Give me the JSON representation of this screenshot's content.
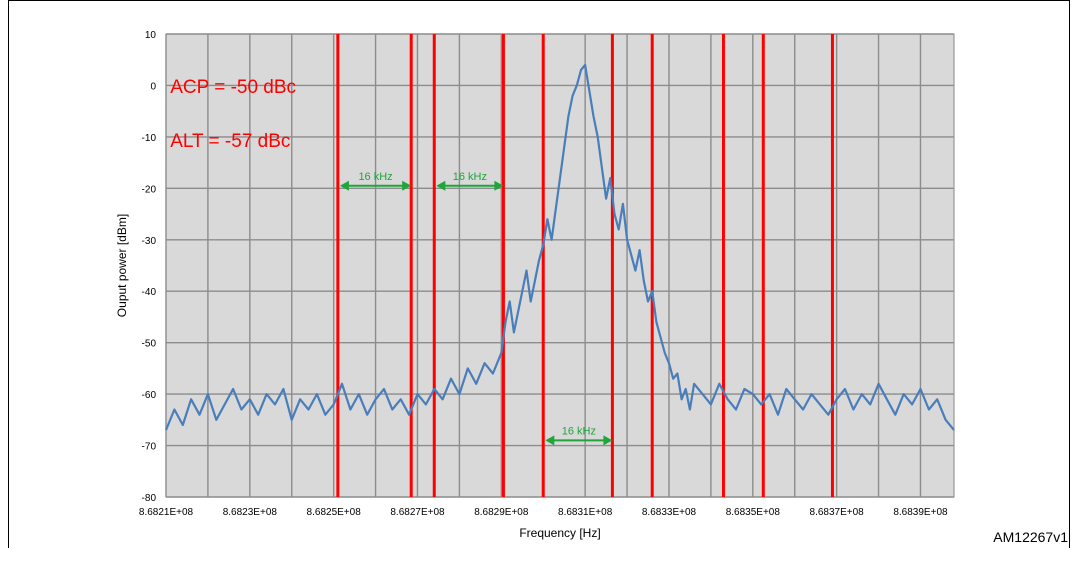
{
  "figure": {
    "id_label": "AM12267v1"
  },
  "chart_data": {
    "type": "line",
    "title": "",
    "xlabel": "Frequency [Hz]",
    "ylabel": "Ouput power [dBm]",
    "xlim": [
      868210000,
      868398000
    ],
    "ylim": [
      -80,
      10
    ],
    "y_ticks": [
      10,
      0,
      -10,
      -20,
      -30,
      -40,
      -50,
      -60,
      -70,
      -80
    ],
    "x_ticks": [
      868210000,
      868230000,
      868250000,
      868270000,
      868290000,
      868310000,
      868330000,
      868350000,
      868370000,
      868390000
    ],
    "x_tick_labels": [
      "8.6821E+08",
      "8.6823E+08",
      "8.6825E+08",
      "8.6827E+08",
      "8.6829E+08",
      "8.6831E+08",
      "8.6833E+08",
      "8.6835E+08",
      "8.6837E+08",
      "8.6839E+08"
    ],
    "grid": true,
    "background_color": "#d9d9d9",
    "line_color": "#4a7ebb",
    "marker_color": "#ff0000",
    "arrow_color": "#1fa53a",
    "series": [
      {
        "x": [
          868210000,
          868212000,
          868214000,
          868216000,
          868218000,
          868220000,
          868222000,
          868224000,
          868226000,
          868228000,
          868230000,
          868232000,
          868234000,
          868236000,
          868238000,
          868240000,
          868242000,
          868244000,
          868246000,
          868248000,
          868250000,
          868252000,
          868254000,
          868256000,
          868258000,
          868260000,
          868262000,
          868264000,
          868266000,
          868268000,
          868270000,
          868272000,
          868274000,
          868276000,
          868278000,
          868280000,
          868282000,
          868284000,
          868286000,
          868288000,
          868290000,
          868291000,
          868292000,
          868293000,
          868294000,
          868295000,
          868296000,
          868297000,
          868298000,
          868299000,
          868300000,
          868301000,
          868302000,
          868303000,
          868304000,
          868305000,
          868306000,
          868307000,
          868308000,
          868309000,
          868310000,
          868311000,
          868312000,
          868313000,
          868314000,
          868315000,
          868316000,
          868317000,
          868318000,
          868319000,
          868320000,
          868321000,
          868322000,
          868323000,
          868324000,
          868325000,
          868326000,
          868327000,
          868328000,
          868329000,
          868330000,
          868331000,
          868332000,
          868333000,
          868334000,
          868335000,
          868336000,
          868338000,
          868340000,
          868342000,
          868344000,
          868346000,
          868348000,
          868350000,
          868352000,
          868354000,
          868356000,
          868358000,
          868360000,
          868362000,
          868364000,
          868366000,
          868368000,
          868370000,
          868372000,
          868374000,
          868376000,
          868378000,
          868380000,
          868382000,
          868384000,
          868386000,
          868388000,
          868390000,
          868392000,
          868394000,
          868396000,
          868398000
        ],
        "y": [
          -67,
          -63,
          -66,
          -61,
          -64,
          -60,
          -65,
          -62,
          -59,
          -63,
          -61,
          -64,
          -60,
          -62,
          -59,
          -65,
          -61,
          -63,
          -60,
          -64,
          -62,
          -58,
          -63,
          -60,
          -64,
          -61,
          -59,
          -63,
          -61,
          -64,
          -60,
          -62,
          -59,
          -61,
          -57,
          -60,
          -55,
          -58,
          -54,
          -56,
          -52,
          -46,
          -42,
          -48,
          -44,
          -40,
          -36,
          -42,
          -38,
          -34,
          -31,
          -26,
          -30,
          -24,
          -18,
          -12,
          -6,
          -2,
          0,
          3,
          4,
          -1,
          -6,
          -10,
          -16,
          -22,
          -18,
          -25,
          -28,
          -23,
          -30,
          -33,
          -36,
          -32,
          -38,
          -42,
          -40,
          -46,
          -49,
          -52,
          -54,
          -57,
          -56,
          -61,
          -59,
          -63,
          -58,
          -60,
          -62,
          -58,
          -61,
          -63,
          -59,
          -60,
          -62,
          -60,
          -64,
          -59,
          -61,
          -63,
          -60,
          -62,
          -64,
          -61,
          -59,
          -63,
          -60,
          -62,
          -58,
          -61,
          -64,
          -60,
          -62,
          -59,
          -63,
          -61,
          -65,
          -67
        ]
      }
    ],
    "vertical_markers": [
      868251000,
      868268500,
      868274000,
      868290500,
      868300000,
      868316500,
      868326000,
      868343000,
      868352500,
      868369000
    ],
    "annotations": [
      {
        "text": "ACP = -50 dBc",
        "x": 868211000,
        "y": -1.5,
        "color": "#ff0000",
        "size": 19
      },
      {
        "text": "ALT = -57 dBc",
        "x": 868211000,
        "y": -12,
        "color": "#ff0000",
        "size": 19
      }
    ],
    "span_arrows": [
      {
        "label": "16 kHz",
        "x1": 868251500,
        "x2": 868268500,
        "y": -19.5
      },
      {
        "label": "16 kHz",
        "x1": 868274500,
        "x2": 868290500,
        "y": -19.5
      },
      {
        "label": "16 kHz",
        "x1": 868300500,
        "x2": 868316500,
        "y": -69
      }
    ]
  }
}
